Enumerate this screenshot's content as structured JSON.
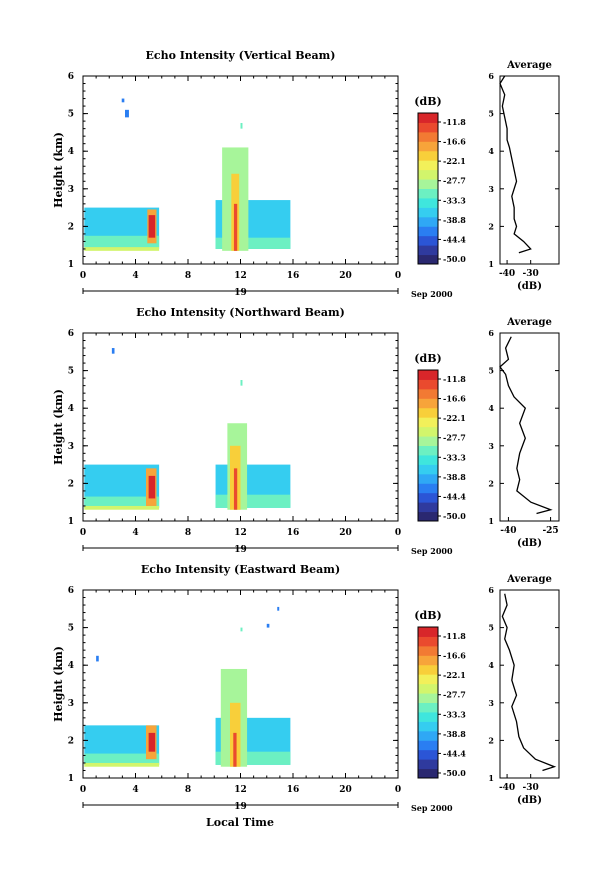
{
  "figure": {
    "xlabel": "Local Time",
    "date_label": "Sep 2000",
    "day_label": "19",
    "colorbar_unit": "(dB)",
    "colorbar_ticks": [
      "-11.8",
      "-16.6",
      "-22.1",
      "-27.7",
      "-33.3",
      "-38.8",
      "-44.4",
      "-50.0"
    ],
    "colorbar_colors": [
      "#2a2870",
      "#2f3a9e",
      "#2b55d6",
      "#2a7ef2",
      "#2fa8f5",
      "#35cdf0",
      "#3fe6dd",
      "#6cf0c2",
      "#a7f59a",
      "#d2f56c",
      "#f2f05a",
      "#f8cf3a",
      "#f7a43a",
      "#f27a33",
      "#ea4a2e",
      "#d8262a"
    ]
  },
  "chart_data": [
    {
      "type": "heatmap",
      "title": "Echo Intensity (Vertical Beam)",
      "ylabel": "Height (km)",
      "xlim": [
        0,
        24
      ],
      "ylim": [
        1,
        6
      ],
      "xticks": [
        "0",
        "4",
        "8",
        "12",
        "16",
        "20",
        "0"
      ],
      "yticks": [
        "1",
        "2",
        "3",
        "4",
        "5",
        "6"
      ],
      "blocks": [
        {
          "t0": 0.1,
          "t1": 5.8,
          "h0": 1.4,
          "h1": 2.5,
          "c": 5
        },
        {
          "t0": 0.1,
          "t1": 5.8,
          "h0": 1.45,
          "h1": 1.75,
          "c": 7
        },
        {
          "t0": 0.1,
          "t1": 5.8,
          "h0": 1.35,
          "h1": 1.45,
          "c": 9
        },
        {
          "t0": 4.9,
          "t1": 5.6,
          "h0": 1.55,
          "h1": 2.45,
          "c": 12
        },
        {
          "t0": 5.0,
          "t1": 5.5,
          "h0": 1.7,
          "h1": 2.3,
          "c": 15
        },
        {
          "t0": 10.1,
          "t1": 15.8,
          "h0": 1.4,
          "h1": 2.7,
          "c": 5
        },
        {
          "t0": 10.1,
          "t1": 15.8,
          "h0": 1.4,
          "h1": 1.7,
          "c": 7
        },
        {
          "t0": 10.6,
          "t1": 12.6,
          "h0": 1.35,
          "h1": 4.1,
          "c": 8
        },
        {
          "t0": 11.3,
          "t1": 11.9,
          "h0": 1.35,
          "h1": 3.4,
          "c": 11
        },
        {
          "t0": 11.5,
          "t1": 11.75,
          "h0": 1.35,
          "h1": 2.6,
          "c": 14
        },
        {
          "t0": 3.2,
          "t1": 3.5,
          "h0": 4.9,
          "h1": 5.1,
          "c": 3
        },
        {
          "t0": 2.95,
          "t1": 3.15,
          "h0": 5.3,
          "h1": 5.4,
          "c": 3
        },
        {
          "t0": 12.0,
          "t1": 12.15,
          "h0": 4.6,
          "h1": 4.75,
          "c": 7
        }
      ],
      "profile": {
        "xticks": [
          "-40",
          "-30"
        ],
        "xlim": [
          -43,
          -18
        ],
        "xlabel": "(dB)",
        "title": "Average",
        "points": [
          [
            -35,
            1.3
          ],
          [
            -30,
            1.4
          ],
          [
            -33,
            1.6
          ],
          [
            -37,
            1.8
          ],
          [
            -36,
            2.0
          ],
          [
            -37,
            2.2
          ],
          [
            -37,
            2.5
          ],
          [
            -38,
            2.8
          ],
          [
            -36,
            3.2
          ],
          [
            -37,
            3.5
          ],
          [
            -38,
            3.8
          ],
          [
            -39,
            4.1
          ],
          [
            -40,
            4.3
          ],
          [
            -40,
            4.6
          ],
          [
            -41,
            4.9
          ],
          [
            -42,
            5.2
          ],
          [
            -41,
            5.5
          ],
          [
            -43,
            5.8
          ],
          [
            -41,
            6.0
          ]
        ]
      }
    },
    {
      "type": "heatmap",
      "title": "Echo Intensity (Northward Beam)",
      "ylabel": "Height (km)",
      "xlim": [
        0,
        24
      ],
      "ylim": [
        1,
        6
      ],
      "xticks": [
        "0",
        "4",
        "8",
        "12",
        "16",
        "20",
        "0"
      ],
      "yticks": [
        "1",
        "2",
        "3",
        "4",
        "5",
        "6"
      ],
      "blocks": [
        {
          "t0": 0.1,
          "t1": 5.8,
          "h0": 1.35,
          "h1": 2.5,
          "c": 5
        },
        {
          "t0": 0.1,
          "t1": 5.8,
          "h0": 1.35,
          "h1": 1.65,
          "c": 7
        },
        {
          "t0": 0.1,
          "t1": 5.8,
          "h0": 1.3,
          "h1": 1.4,
          "c": 9
        },
        {
          "t0": 4.8,
          "t1": 5.6,
          "h0": 1.4,
          "h1": 2.4,
          "c": 12
        },
        {
          "t0": 5.0,
          "t1": 5.5,
          "h0": 1.6,
          "h1": 2.2,
          "c": 15
        },
        {
          "t0": 10.1,
          "t1": 15.8,
          "h0": 1.35,
          "h1": 2.5,
          "c": 5
        },
        {
          "t0": 10.1,
          "t1": 15.8,
          "h0": 1.35,
          "h1": 1.7,
          "c": 7
        },
        {
          "t0": 11.0,
          "t1": 12.5,
          "h0": 1.3,
          "h1": 3.6,
          "c": 8
        },
        {
          "t0": 11.2,
          "t1": 12.0,
          "h0": 1.3,
          "h1": 3.0,
          "c": 11
        },
        {
          "t0": 11.5,
          "t1": 11.75,
          "h0": 1.3,
          "h1": 2.4,
          "c": 14
        },
        {
          "t0": 2.2,
          "t1": 2.4,
          "h0": 5.45,
          "h1": 5.6,
          "c": 3
        },
        {
          "t0": 12.0,
          "t1": 12.15,
          "h0": 4.6,
          "h1": 4.75,
          "c": 7
        }
      ],
      "profile": {
        "xticks": [
          "-40",
          "-25"
        ],
        "xlim": [
          -43,
          -22
        ],
        "xlabel": "(dB)",
        "title": "Average",
        "points": [
          [
            -30,
            1.2
          ],
          [
            -25,
            1.3
          ],
          [
            -32,
            1.5
          ],
          [
            -37,
            1.8
          ],
          [
            -36,
            2.1
          ],
          [
            -37,
            2.4
          ],
          [
            -36,
            2.8
          ],
          [
            -34,
            3.2
          ],
          [
            -36,
            3.6
          ],
          [
            -34,
            4.0
          ],
          [
            -38,
            4.3
          ],
          [
            -40,
            4.6
          ],
          [
            -41,
            4.9
          ],
          [
            -43,
            5.1
          ],
          [
            -40,
            5.3
          ],
          [
            -41,
            5.6
          ],
          [
            -39,
            5.9
          ]
        ]
      }
    },
    {
      "type": "heatmap",
      "title": "Echo Intensity (Eastward Beam)",
      "ylabel": "Height (km)",
      "xlim": [
        0,
        24
      ],
      "ylim": [
        1,
        6
      ],
      "xticks": [
        "0",
        "4",
        "8",
        "12",
        "16",
        "20",
        "0"
      ],
      "yticks": [
        "1",
        "2",
        "3",
        "4",
        "5",
        "6"
      ],
      "blocks": [
        {
          "t0": 0.1,
          "t1": 5.8,
          "h0": 1.35,
          "h1": 2.4,
          "c": 5
        },
        {
          "t0": 0.1,
          "t1": 5.8,
          "h0": 1.35,
          "h1": 1.65,
          "c": 7
        },
        {
          "t0": 0.1,
          "t1": 5.8,
          "h0": 1.3,
          "h1": 1.4,
          "c": 9
        },
        {
          "t0": 4.8,
          "t1": 5.6,
          "h0": 1.5,
          "h1": 2.4,
          "c": 12
        },
        {
          "t0": 5.0,
          "t1": 5.5,
          "h0": 1.7,
          "h1": 2.2,
          "c": 15
        },
        {
          "t0": 10.1,
          "t1": 15.8,
          "h0": 1.35,
          "h1": 2.6,
          "c": 5
        },
        {
          "t0": 10.1,
          "t1": 15.8,
          "h0": 1.35,
          "h1": 1.7,
          "c": 7
        },
        {
          "t0": 10.5,
          "t1": 12.5,
          "h0": 1.3,
          "h1": 3.9,
          "c": 8
        },
        {
          "t0": 11.2,
          "t1": 12.0,
          "h0": 1.3,
          "h1": 3.0,
          "c": 11
        },
        {
          "t0": 11.45,
          "t1": 11.7,
          "h0": 1.3,
          "h1": 2.2,
          "c": 14
        },
        {
          "t0": 1.0,
          "t1": 1.2,
          "h0": 4.1,
          "h1": 4.25,
          "c": 3
        },
        {
          "t0": 14.0,
          "t1": 14.2,
          "h0": 5.0,
          "h1": 5.1,
          "c": 3
        },
        {
          "t0": 14.8,
          "t1": 14.95,
          "h0": 5.45,
          "h1": 5.55,
          "c": 3
        },
        {
          "t0": 12.0,
          "t1": 12.15,
          "h0": 4.9,
          "h1": 5.0,
          "c": 7
        }
      ],
      "profile": {
        "xticks": [
          "-40",
          "-30"
        ],
        "xlim": [
          -43,
          -18
        ],
        "xlabel": "(dB)",
        "title": "Average",
        "points": [
          [
            -25,
            1.2
          ],
          [
            -20,
            1.3
          ],
          [
            -28,
            1.5
          ],
          [
            -33,
            1.8
          ],
          [
            -35,
            2.1
          ],
          [
            -36,
            2.5
          ],
          [
            -38,
            2.9
          ],
          [
            -36,
            3.2
          ],
          [
            -38,
            3.6
          ],
          [
            -37,
            4.0
          ],
          [
            -39,
            4.4
          ],
          [
            -41,
            4.7
          ],
          [
            -40,
            5.0
          ],
          [
            -42,
            5.3
          ],
          [
            -40,
            5.6
          ],
          [
            -41,
            5.9
          ]
        ]
      }
    }
  ]
}
